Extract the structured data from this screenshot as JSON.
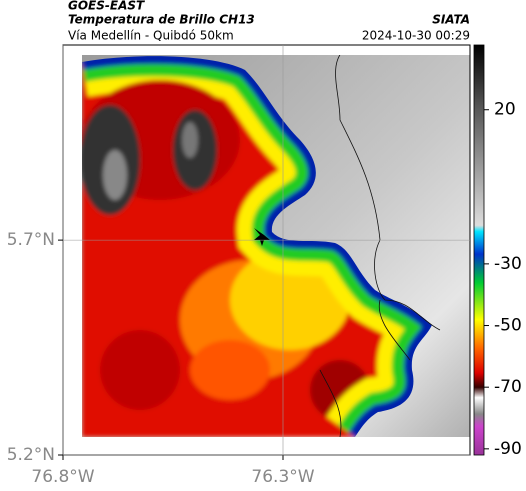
{
  "header": {
    "satellite": "GOES-EAST",
    "product": "Temperatura de Brillo CH13",
    "route": "Vía Medellín - Quibdó 50km",
    "source": "SIATA",
    "timestamp": "2024-10-30 00:29"
  },
  "map": {
    "xlim": [
      -76.8,
      -75.875
    ],
    "ylim": [
      5.2,
      6.154
    ],
    "xticks": [
      {
        "value": -76.8,
        "label": "76.8°W"
      },
      {
        "value": -76.3,
        "label": "76.3°W"
      }
    ],
    "yticks": [
      {
        "value": 5.2,
        "label": "5.2°N"
      },
      {
        "value": 5.7,
        "label": "5.7°N"
      }
    ]
  },
  "colorbar": {
    "lim": [
      -92,
      41
    ],
    "ticks": [
      20,
      -30,
      -50,
      -70,
      -90
    ]
  }
}
